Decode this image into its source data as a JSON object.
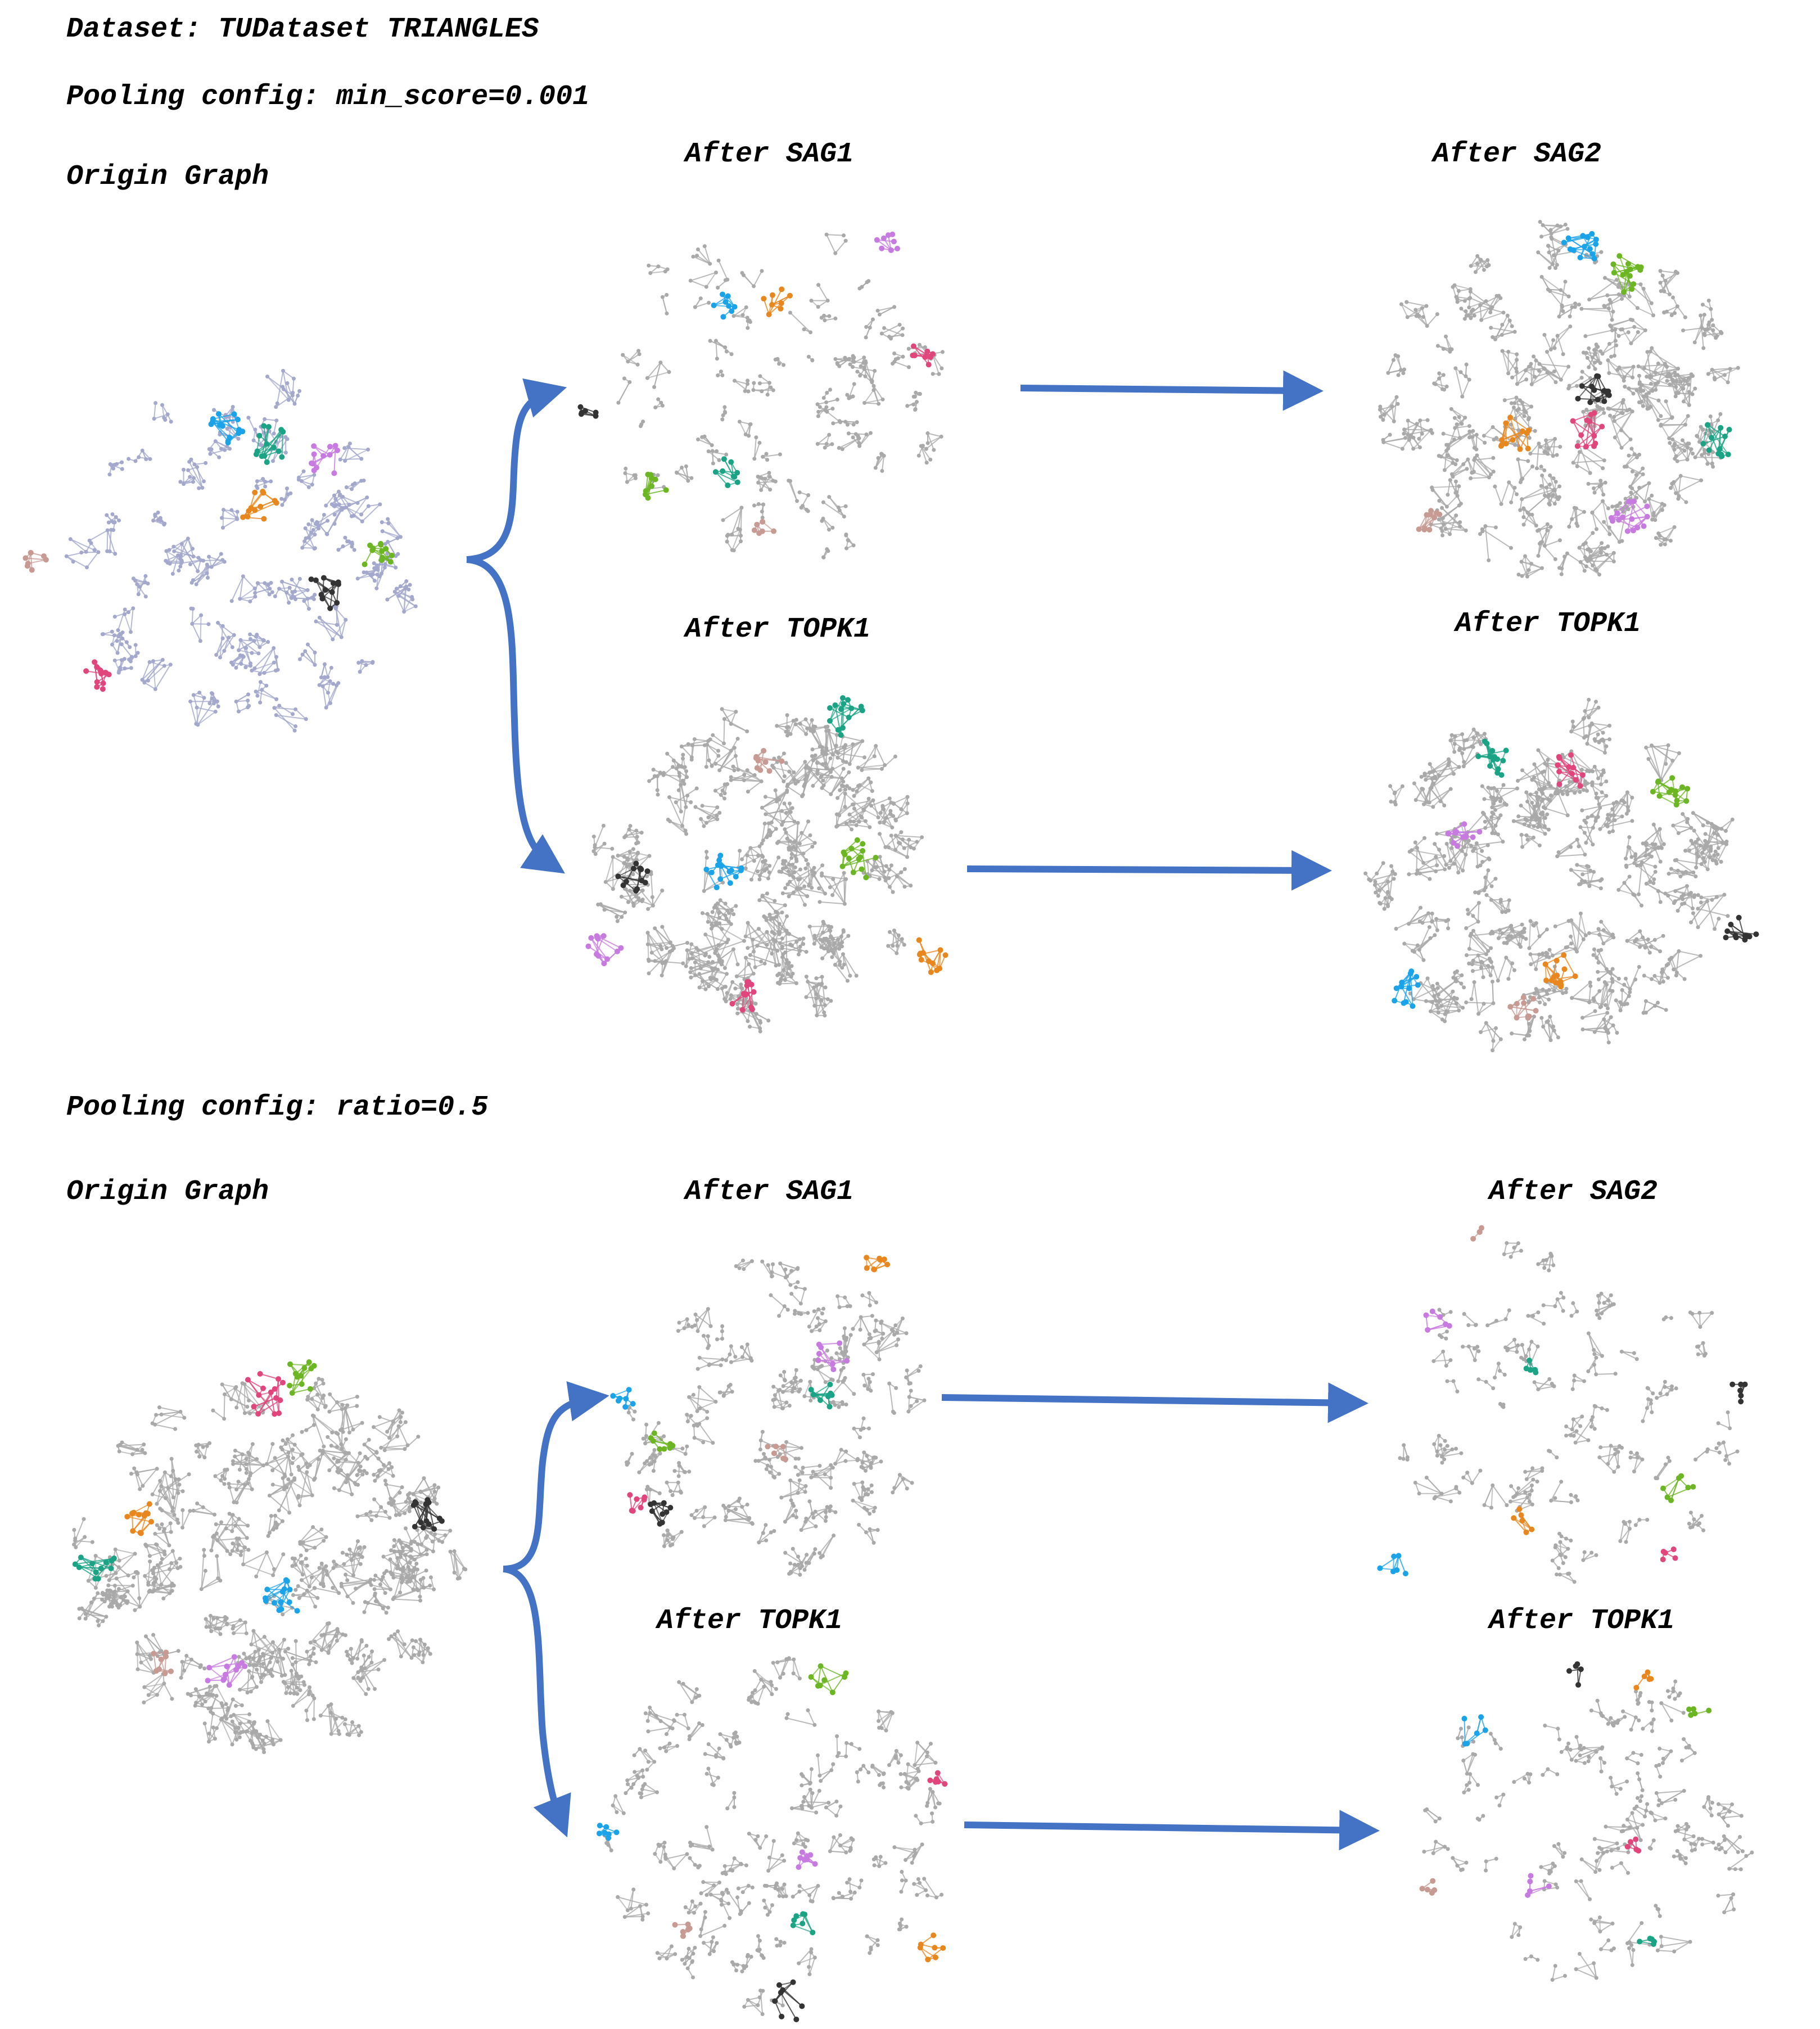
{
  "header": {
    "dataset": "Dataset: TUDataset TRIANGLES"
  },
  "sections": [
    {
      "config": "Pooling config: min_score=0.001",
      "origin_label": "Origin Graph",
      "labels": {
        "sag1": "After SAG1",
        "sag2": "After SAG2",
        "topk1_a": "After TOPK1",
        "topk1_b": "After TOPK1"
      }
    },
    {
      "config": "Pooling config: ratio=0.5",
      "origin_label": "Origin Graph",
      "labels": {
        "sag1": "After SAG1",
        "sag2": "After SAG2",
        "topk1_a": "After TOPK1",
        "topk1_b": "After TOPK1"
      }
    }
  ],
  "colors": {
    "arrow": "#4472C4",
    "node_gray": "#a9a9a9",
    "node_origin_lavender": "#a3a8cc",
    "blue": "#1aa3e8",
    "teal": "#1aa384",
    "purple": "#c77be0",
    "orange": "#e8871e",
    "brown": "#c79a93",
    "green": "#6cb523",
    "black": "#333333",
    "pink": "#e0457b"
  }
}
